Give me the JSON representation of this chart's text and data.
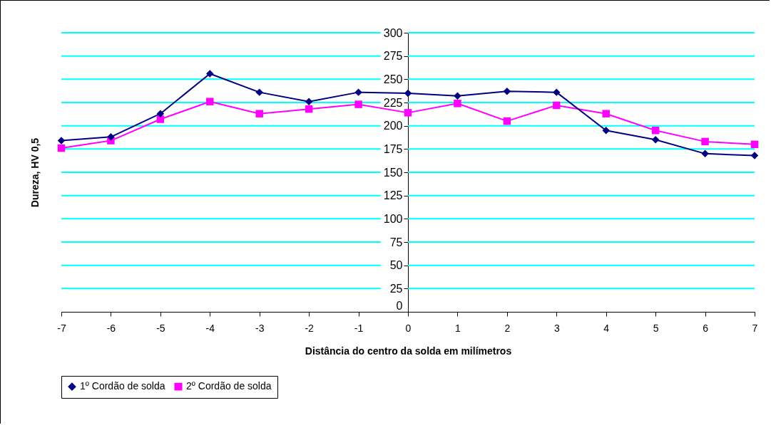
{
  "chart_data": {
    "type": "line",
    "xlabel": "Distância do centro da solda em milímetros",
    "ylabel": "Dureza, HV 0,5",
    "x": [
      -7,
      -6,
      -5,
      -4,
      -3,
      -2,
      -1,
      0,
      1,
      2,
      3,
      4,
      5,
      6,
      7
    ],
    "series": [
      {
        "name": "1º Cordão de solda",
        "color": "#000080",
        "marker": "diamond",
        "values": [
          184,
          188,
          213,
          256,
          236,
          226,
          236,
          235,
          232,
          237,
          236,
          195,
          185,
          170,
          168
        ]
      },
      {
        "name": "2º Cordão de solda",
        "color": "#ff00ff",
        "marker": "square",
        "values": [
          176,
          184,
          207,
          226,
          213,
          218,
          223,
          214,
          224,
          205,
          222,
          213,
          195,
          183,
          180
        ]
      }
    ],
    "xlim": [
      -7,
      7
    ],
    "xticks": [
      -7,
      -6,
      -5,
      -4,
      -3,
      -2,
      -1,
      0,
      1,
      2,
      3,
      4,
      5,
      6,
      7
    ],
    "ylim": [
      0,
      300
    ],
    "yticks": [
      0,
      25,
      50,
      75,
      100,
      125,
      150,
      175,
      200,
      225,
      250,
      275,
      300
    ],
    "grid": "y",
    "legend": "bottom"
  }
}
